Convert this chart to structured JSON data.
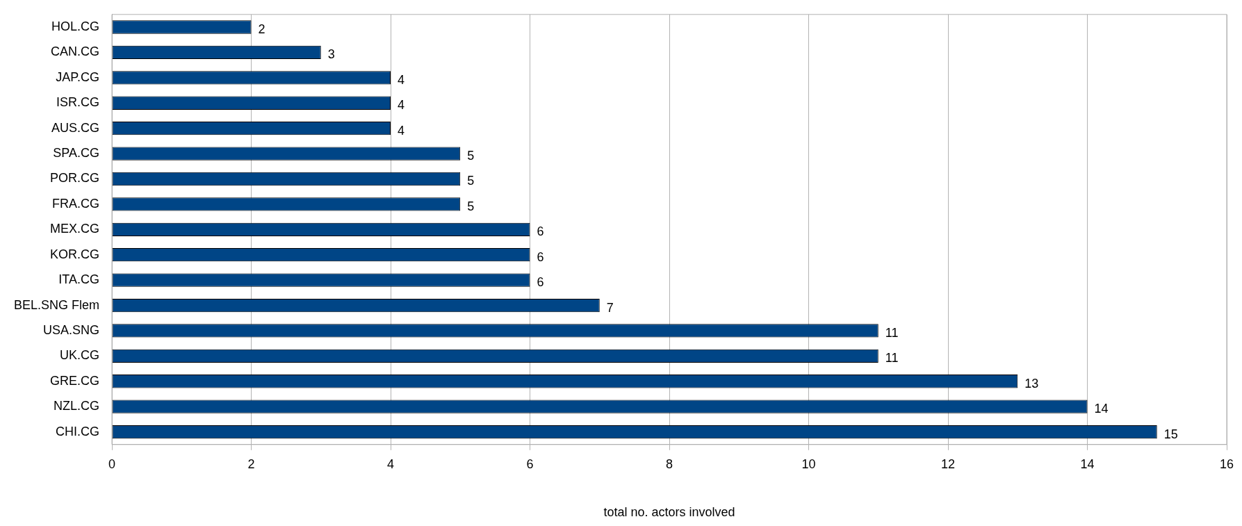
{
  "chart_data": {
    "type": "bar",
    "orientation": "horizontal",
    "xlabel": "total no. actors involved",
    "categories": [
      "HOL.CG",
      "CAN.CG",
      "JAP.CG",
      "ISR.CG",
      "AUS.CG",
      "SPA.CG",
      "POR.CG",
      "FRA.CG",
      "MEX.CG",
      "KOR.CG",
      "ITA.CG",
      "BEL.SNG Flem",
      "USA.SNG",
      "UK.CG",
      "GRE.CG",
      "NZL.CG",
      "CHI.CG"
    ],
    "values": [
      2,
      3,
      4,
      4,
      4,
      5,
      5,
      5,
      6,
      6,
      6,
      7,
      11,
      11,
      13,
      14,
      15
    ],
    "color": "#004586",
    "xlim": [
      0,
      16
    ],
    "xticks": [
      0,
      2,
      4,
      6,
      8,
      10,
      12,
      14,
      16
    ],
    "grid": "x",
    "legend": false,
    "data_labels": true
  }
}
